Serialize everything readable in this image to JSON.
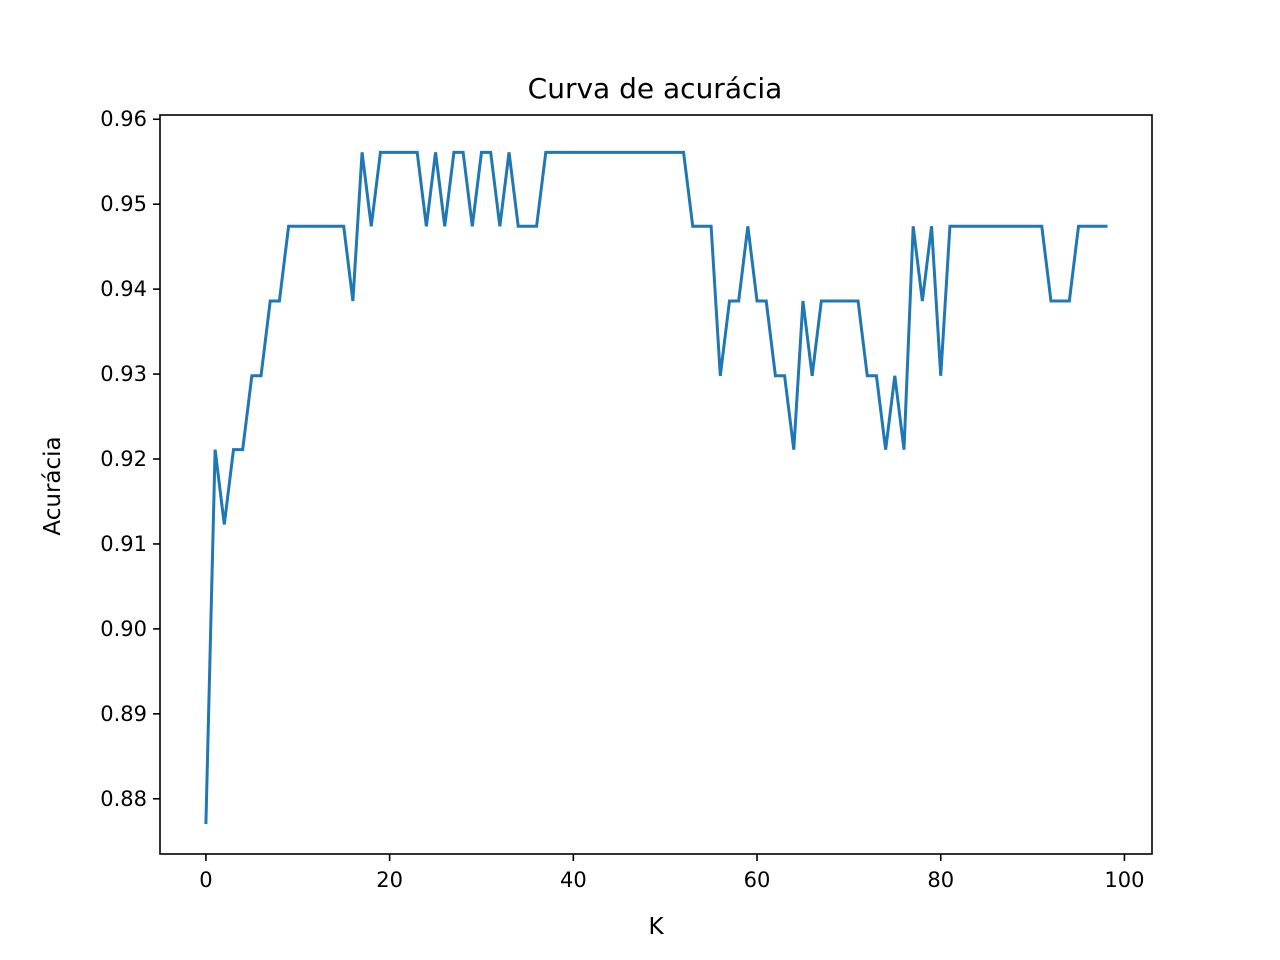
{
  "chart_data": {
    "type": "line",
    "title": "Curva de acurácia",
    "xlabel": "K",
    "ylabel": "Acurácia",
    "xlim": [
      -5,
      103
    ],
    "ylim": [
      0.8735,
      0.9605
    ],
    "xticks": [
      0,
      20,
      40,
      60,
      80,
      100
    ],
    "xtick_labels": [
      "0",
      "20",
      "40",
      "60",
      "80",
      "100"
    ],
    "yticks": [
      0.88,
      0.89,
      0.9,
      0.91,
      0.92,
      0.93,
      0.94,
      0.95,
      0.96
    ],
    "ytick_labels": [
      "0.88",
      "0.89",
      "0.90",
      "0.91",
      "0.92",
      "0.93",
      "0.94",
      "0.95",
      "0.96"
    ],
    "grid": false,
    "line_color": "#1f77b4",
    "series": [
      {
        "x": [
          0,
          1,
          2,
          3,
          4,
          5,
          6,
          7,
          8,
          9,
          10,
          11,
          12,
          13,
          14,
          15,
          16,
          17,
          18,
          19,
          20,
          21,
          22,
          23,
          24,
          25,
          26,
          27,
          28,
          29,
          30,
          31,
          32,
          33,
          34,
          35,
          36,
          37,
          38,
          39,
          40,
          41,
          42,
          43,
          44,
          45,
          46,
          47,
          48,
          49,
          50,
          51,
          52,
          53,
          54,
          55,
          56,
          57,
          58,
          59,
          60,
          61,
          62,
          63,
          64,
          65,
          66,
          67,
          68,
          69,
          70,
          71,
          72,
          73,
          74,
          75,
          76,
          77,
          78,
          79,
          80,
          81,
          82,
          83,
          84,
          85,
          86,
          87,
          88,
          89,
          90,
          91,
          92,
          93,
          94,
          95,
          96,
          97,
          98
        ],
        "values": [
          0.8772,
          0.9211,
          0.9123,
          0.9211,
          0.9211,
          0.9298,
          0.9298,
          0.9386,
          0.9386,
          0.9474,
          0.9474,
          0.9474,
          0.9474,
          0.9474,
          0.9474,
          0.9474,
          0.9386,
          0.9561,
          0.9474,
          0.9561,
          0.9561,
          0.9561,
          0.9561,
          0.9561,
          0.9474,
          0.9561,
          0.9474,
          0.9561,
          0.9561,
          0.9474,
          0.9561,
          0.9561,
          0.9474,
          0.9561,
          0.9474,
          0.9474,
          0.9474,
          0.9561,
          0.9561,
          0.9561,
          0.9561,
          0.9561,
          0.9561,
          0.9561,
          0.9561,
          0.9561,
          0.9561,
          0.9561,
          0.9561,
          0.9561,
          0.9561,
          0.9561,
          0.9561,
          0.9474,
          0.9474,
          0.9474,
          0.9298,
          0.9386,
          0.9386,
          0.9474,
          0.9386,
          0.9386,
          0.9298,
          0.9298,
          0.9211,
          0.9386,
          0.9298,
          0.9386,
          0.9386,
          0.9386,
          0.9386,
          0.9386,
          0.9298,
          0.9298,
          0.9211,
          0.9298,
          0.9211,
          0.9474,
          0.9386,
          0.9474,
          0.9298,
          0.9474,
          0.9474,
          0.9474,
          0.9474,
          0.9474,
          0.9474,
          0.9474,
          0.9474,
          0.9474,
          0.9474,
          0.9474,
          0.9386,
          0.9386,
          0.9386,
          0.9474,
          0.9474,
          0.9474,
          0.9474
        ]
      }
    ]
  }
}
